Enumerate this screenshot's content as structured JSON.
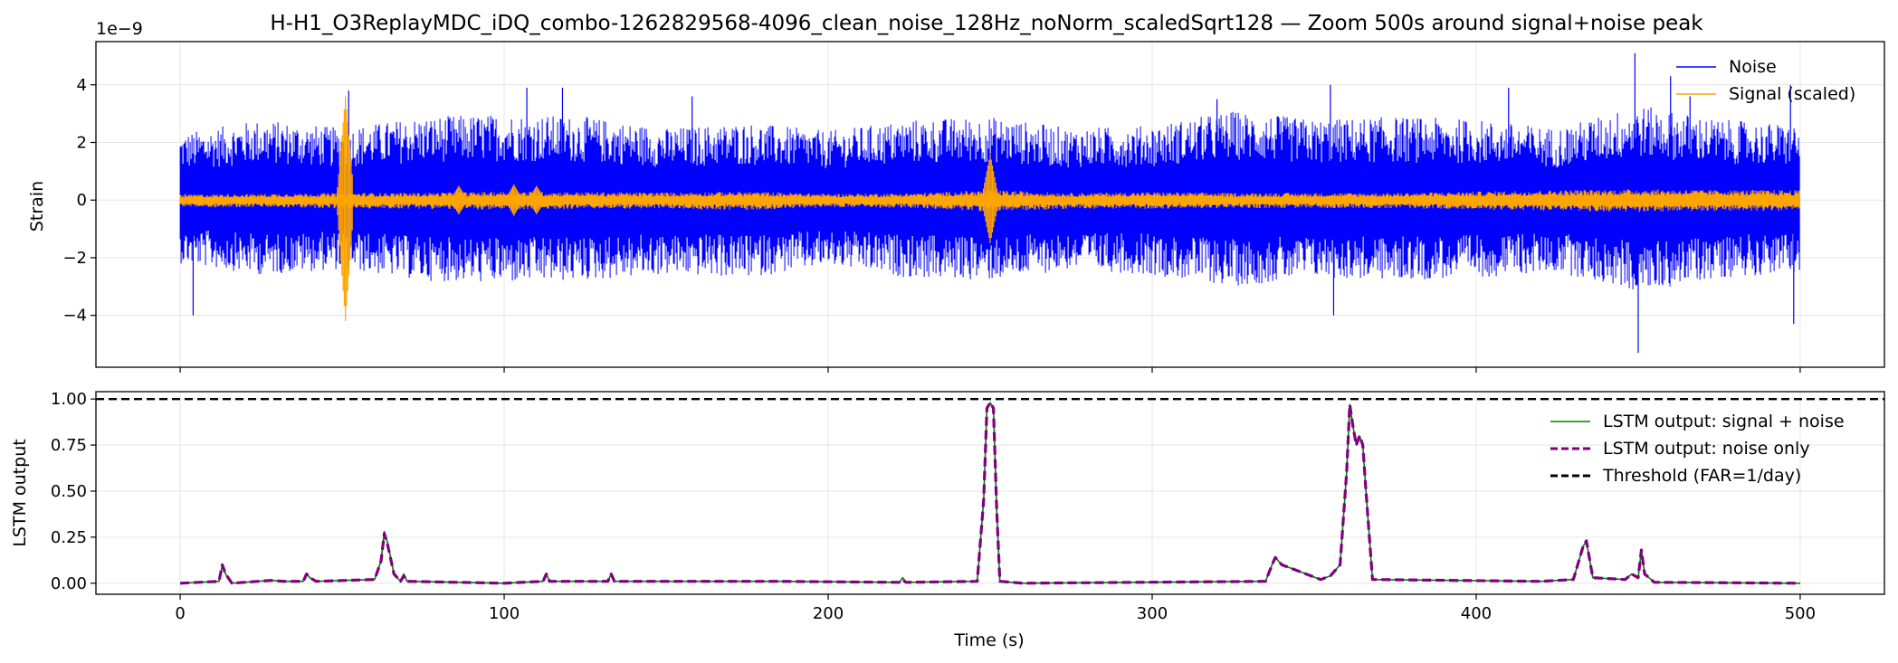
{
  "chart_data": [
    {
      "type": "line",
      "title": "H-H1_O3ReplayMDC_iDQ_combo-1262829568-4096_clean_noise_128Hz_noNorm_scaledSqrt128 — Zoom 500s around signal+noise peak",
      "xlabel": "",
      "ylabel": "Strain",
      "exponent_label": "1e−9",
      "xlim": [
        -26,
        526
      ],
      "ylim": [
        -5.8,
        5.5
      ],
      "xticks": [
        0,
        100,
        200,
        300,
        400,
        500
      ],
      "yticks": [
        -4,
        -2,
        0,
        2,
        4
      ],
      "yticklabels": [
        "−4",
        "−2",
        "0",
        "2",
        "4"
      ],
      "grid": true,
      "legend": "top-right",
      "series": [
        {
          "name": "Noise",
          "color": "#0000ff",
          "x": [
            0,
            25,
            50,
            75,
            100,
            125,
            150,
            175,
            200,
            225,
            250,
            275,
            300,
            325,
            350,
            375,
            400,
            425,
            450,
            475,
            500
          ],
          "envelope_upper": [
            2.3,
            2.8,
            2.5,
            2.9,
            3.0,
            2.9,
            2.5,
            2.7,
            2.4,
            2.8,
            2.9,
            2.5,
            2.6,
            3.1,
            2.8,
            2.9,
            2.8,
            2.5,
            3.3,
            2.8,
            2.6
          ],
          "envelope_lower": [
            -2.2,
            -2.6,
            -2.4,
            -2.8,
            -2.9,
            -2.8,
            -2.6,
            -2.7,
            -2.3,
            -2.7,
            -2.8,
            -2.4,
            -2.6,
            -3.0,
            -2.7,
            -2.8,
            -2.7,
            -2.5,
            -3.2,
            -2.7,
            -2.5
          ],
          "peaks": [
            {
              "x": 4,
              "y": -4.0
            },
            {
              "x": 52,
              "y": 3.8
            },
            {
              "x": 107,
              "y": 3.9
            },
            {
              "x": 118,
              "y": 3.9
            },
            {
              "x": 158,
              "y": 3.6
            },
            {
              "x": 320,
              "y": 3.5
            },
            {
              "x": 355,
              "y": 4.0
            },
            {
              "x": 356,
              "y": -4.0
            },
            {
              "x": 410,
              "y": 3.9
            },
            {
              "x": 449,
              "y": 5.1
            },
            {
              "x": 450,
              "y": -5.3
            },
            {
              "x": 460,
              "y": 4.3
            },
            {
              "x": 466,
              "y": 3.6
            },
            {
              "x": 497,
              "y": 4.0
            },
            {
              "x": 498,
              "y": -4.3
            }
          ]
        },
        {
          "name": "Signal (scaled)",
          "color": "#ffa500",
          "x": [
            0,
            25,
            50,
            75,
            100,
            125,
            150,
            175,
            200,
            225,
            250,
            275,
            300,
            325,
            350,
            375,
            400,
            425,
            450,
            475,
            500
          ],
          "envelope_upper": [
            0.2,
            0.22,
            0.25,
            0.26,
            0.3,
            0.28,
            0.27,
            0.3,
            0.22,
            0.24,
            0.35,
            0.25,
            0.28,
            0.25,
            0.25,
            0.25,
            0.3,
            0.35,
            0.38,
            0.35,
            0.35
          ],
          "envelope_lower": [
            -0.25,
            -0.25,
            -0.3,
            -0.3,
            -0.35,
            -0.3,
            -0.3,
            -0.35,
            -0.25,
            -0.27,
            -0.4,
            -0.3,
            -0.3,
            -0.28,
            -0.28,
            -0.28,
            -0.33,
            -0.38,
            -0.42,
            -0.38,
            -0.38
          ],
          "bursts": [
            {
              "x": 51,
              "ymax": 3.6,
              "ymin": -4.2
            },
            {
              "x": 250,
              "ymax": 1.6,
              "ymin": -1.5
            },
            {
              "x": 86,
              "ymax": 0.5,
              "ymin": -0.5
            },
            {
              "x": 103,
              "ymax": 0.55,
              "ymin": -0.55
            },
            {
              "x": 110,
              "ymax": 0.5,
              "ymin": -0.5
            }
          ]
        }
      ]
    },
    {
      "type": "line",
      "title": "",
      "xlabel": "Time (s)",
      "ylabel": "LSTM output",
      "xlim": [
        -26,
        526
      ],
      "ylim": [
        -0.06,
        1.04
      ],
      "xticks": [
        0,
        100,
        200,
        300,
        400,
        500
      ],
      "yticks": [
        0.0,
        0.25,
        0.5,
        0.75,
        1.0
      ],
      "yticklabels": [
        "0.00",
        "0.25",
        "0.50",
        "0.75",
        "1.00"
      ],
      "grid": true,
      "legend": "top-right",
      "series": [
        {
          "name": "LSTM output: signal + noise",
          "color": "#008000",
          "style": "solid",
          "x": [
            0,
            12,
            13,
            14,
            16,
            24,
            28,
            32,
            38,
            39,
            40,
            42,
            60,
            62,
            63,
            64,
            66,
            68,
            69,
            70,
            100,
            112,
            113,
            114,
            132,
            133,
            134,
            150,
            185,
            222,
            223,
            224,
            246,
            248,
            249,
            250,
            251,
            252,
            253,
            260,
            335,
            337,
            338,
            340,
            352,
            355,
            358,
            360,
            361,
            362,
            363,
            364,
            365,
            366,
            368,
            420,
            430,
            433,
            434,
            436,
            446,
            448,
            450,
            451,
            452,
            455,
            500
          ],
          "values": [
            0,
            0.01,
            0.1,
            0.05,
            0,
            0.01,
            0.015,
            0.01,
            0.01,
            0.05,
            0.03,
            0.01,
            0.02,
            0.12,
            0.28,
            0.22,
            0.05,
            0.01,
            0.05,
            0.01,
            0,
            0.01,
            0.05,
            0.01,
            0.01,
            0.05,
            0.01,
            0.01,
            0.01,
            0.005,
            0.03,
            0.005,
            0.01,
            0.45,
            0.95,
            0.98,
            0.95,
            0.4,
            0.01,
            0,
            0.01,
            0.1,
            0.14,
            0.1,
            0.02,
            0.04,
            0.1,
            0.6,
            0.97,
            0.85,
            0.75,
            0.8,
            0.75,
            0.5,
            0.02,
            0.01,
            0.02,
            0.2,
            0.23,
            0.03,
            0.02,
            0.05,
            0.03,
            0.18,
            0.05,
            0.005,
            0
          ]
        },
        {
          "name": "LSTM output: noise only",
          "color": "#800080",
          "style": "dashed",
          "x": [
            0,
            12,
            13,
            14,
            16,
            24,
            28,
            32,
            38,
            39,
            40,
            42,
            60,
            62,
            63,
            64,
            66,
            68,
            69,
            70,
            100,
            112,
            113,
            114,
            132,
            133,
            134,
            150,
            185,
            222,
            223,
            224,
            246,
            248,
            249,
            250,
            251,
            252,
            253,
            260,
            335,
            337,
            338,
            340,
            352,
            355,
            358,
            360,
            361,
            362,
            363,
            364,
            365,
            366,
            368,
            420,
            430,
            433,
            434,
            436,
            446,
            448,
            450,
            451,
            452,
            455,
            500
          ],
          "values": [
            0,
            0.01,
            0.1,
            0.05,
            0,
            0.01,
            0.015,
            0.01,
            0.01,
            0.05,
            0.03,
            0.01,
            0.02,
            0.12,
            0.27,
            0.21,
            0.05,
            0.01,
            0.04,
            0.01,
            0,
            0.01,
            0.05,
            0.01,
            0.01,
            0.05,
            0.01,
            0.01,
            0.01,
            0.005,
            0.02,
            0.005,
            0.01,
            0.45,
            0.95,
            0.98,
            0.95,
            0.4,
            0.01,
            0,
            0.01,
            0.1,
            0.14,
            0.1,
            0.02,
            0.04,
            0.1,
            0.6,
            0.97,
            0.85,
            0.75,
            0.8,
            0.75,
            0.5,
            0.02,
            0.01,
            0.02,
            0.2,
            0.23,
            0.03,
            0.02,
            0.05,
            0.03,
            0.18,
            0.05,
            0.005,
            0
          ]
        },
        {
          "name": "Threshold (FAR=1/day)",
          "color": "#000000",
          "style": "dashed",
          "hline": 1.0
        }
      ]
    }
  ]
}
